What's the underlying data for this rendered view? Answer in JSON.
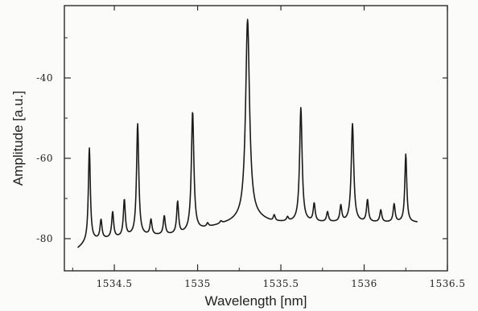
{
  "chart_data": {
    "type": "line",
    "title": "",
    "xlabel": "Wavelength [nm]",
    "ylabel": "Amplitude [a.u.]",
    "xlim": [
      1534.2,
      1536.5
    ],
    "ylim": [
      -88,
      -22
    ],
    "xticks": [
      1534.5,
      1535,
      1535.5,
      1536,
      1536.5
    ],
    "xtick_labels": [
      "1534.5",
      "1535",
      "1535.5",
      "1536",
      "1536.5"
    ],
    "yticks": [
      -40,
      -60,
      -80
    ],
    "ytick_labels": [
      "-40",
      "-60",
      "-80"
    ],
    "grid": false,
    "legend": "none",
    "line_color": "#1a1a1a",
    "series": [
      {
        "baseline": [
          [
            1534.28,
            -82.5
          ],
          [
            1534.35,
            -80.5
          ],
          [
            1534.6,
            -79.5
          ],
          [
            1534.9,
            -79
          ],
          [
            1535.1,
            -77
          ],
          [
            1535.2,
            -76
          ],
          [
            1535.32,
            -74.5
          ],
          [
            1535.45,
            -76
          ],
          [
            1535.7,
            -76
          ],
          [
            1536.0,
            -76
          ],
          [
            1536.25,
            -76
          ],
          [
            1536.32,
            -76
          ]
        ],
        "peaks": [
          {
            "x": 1534.35,
            "y": -57.5,
            "w": 0.007
          },
          {
            "x": 1534.42,
            "y": -75.5,
            "w": 0.007
          },
          {
            "x": 1534.49,
            "y": -73.5,
            "w": 0.007
          },
          {
            "x": 1534.56,
            "y": -70.5,
            "w": 0.007
          },
          {
            "x": 1534.64,
            "y": -51.5,
            "w": 0.008
          },
          {
            "x": 1534.72,
            "y": -75.5,
            "w": 0.007
          },
          {
            "x": 1534.8,
            "y": -74.5,
            "w": 0.007
          },
          {
            "x": 1534.88,
            "y": -71,
            "w": 0.007
          },
          {
            "x": 1534.97,
            "y": -48.5,
            "w": 0.009
          },
          {
            "x": 1535.06,
            "y": -76.5,
            "w": 0.007
          },
          {
            "x": 1535.14,
            "y": -76,
            "w": 0.007
          },
          {
            "x": 1535.3,
            "y": -25.5,
            "w": 0.014
          },
          {
            "x": 1535.46,
            "y": -74.5,
            "w": 0.007
          },
          {
            "x": 1535.54,
            "y": -75,
            "w": 0.007
          },
          {
            "x": 1535.62,
            "y": -47.5,
            "w": 0.009
          },
          {
            "x": 1535.7,
            "y": -71.5,
            "w": 0.007
          },
          {
            "x": 1535.78,
            "y": -73.5,
            "w": 0.007
          },
          {
            "x": 1535.86,
            "y": -72,
            "w": 0.007
          },
          {
            "x": 1535.93,
            "y": -51.5,
            "w": 0.009
          },
          {
            "x": 1536.02,
            "y": -70.5,
            "w": 0.007
          },
          {
            "x": 1536.1,
            "y": -73,
            "w": 0.007
          },
          {
            "x": 1536.18,
            "y": -71.5,
            "w": 0.007
          },
          {
            "x": 1536.25,
            "y": -59,
            "w": 0.007
          }
        ]
      }
    ]
  }
}
